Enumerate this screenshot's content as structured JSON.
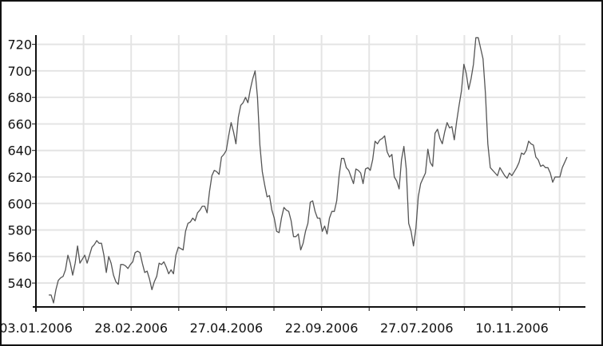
{
  "chart_data": {
    "type": "line",
    "title": "",
    "xlabel": "",
    "ylabel": "",
    "ylim": [
      522,
      727
    ],
    "y_ticks": [
      540,
      560,
      580,
      600,
      620,
      640,
      660,
      680,
      700,
      720
    ],
    "x_tick_labels": [
      "03.01.2006",
      "28.02.2006",
      "27.04.2006",
      "22.09.2006",
      "27.07.2006",
      "10.11.2006"
    ],
    "grid": true,
    "legend": "none",
    "line_color": "#555555",
    "grid_color": "#e4e4e4",
    "series": [
      {
        "values": [
          531,
          531,
          525,
          535,
          542,
          544,
          545,
          550,
          561,
          555,
          546,
          555,
          568,
          555,
          558,
          561,
          555,
          561,
          567,
          569,
          572,
          570,
          570,
          561,
          548,
          560,
          555,
          546,
          541,
          539,
          554,
          554,
          553,
          551,
          554,
          556,
          563,
          564,
          563,
          555,
          548,
          549,
          543,
          535,
          541,
          545,
          555,
          554,
          556,
          552,
          547,
          550,
          547,
          561,
          567,
          566,
          565,
          579,
          585,
          586,
          589,
          587,
          593,
          595,
          598,
          598,
          593,
          609,
          621,
          625,
          624,
          622,
          635,
          637,
          640,
          651,
          661,
          654,
          645,
          665,
          674,
          676,
          680,
          676,
          686,
          694,
          700,
          680,
          644,
          624,
          614,
          605,
          606,
          595,
          589,
          579,
          578,
          589,
          597,
          595,
          594,
          587,
          575,
          575,
          577,
          565,
          570,
          579,
          585,
          601,
          602,
          594,
          589,
          589,
          579,
          583,
          577,
          589,
          594,
          594,
          602,
          621,
          634,
          634,
          627,
          625,
          620,
          615,
          626,
          625,
          623,
          615,
          626,
          627,
          625,
          633,
          647,
          645,
          648,
          649,
          651,
          639,
          635,
          637,
          620,
          617,
          611,
          633,
          643,
          626,
          585,
          579,
          568,
          581,
          605,
          615,
          619,
          623,
          641,
          631,
          628,
          653,
          656,
          649,
          645,
          654,
          661,
          657,
          658,
          648,
          662,
          674,
          685,
          705,
          698,
          686,
          694,
          705,
          725,
          725,
          717,
          709,
          683,
          645,
          627,
          625,
          623,
          621,
          627,
          624,
          621,
          619,
          623,
          621,
          624,
          627,
          631,
          638,
          637,
          640,
          647,
          645,
          644,
          635,
          633,
          628,
          629,
          627,
          627,
          623,
          616,
          620,
          620,
          620,
          627,
          631,
          635
        ]
      }
    ]
  }
}
